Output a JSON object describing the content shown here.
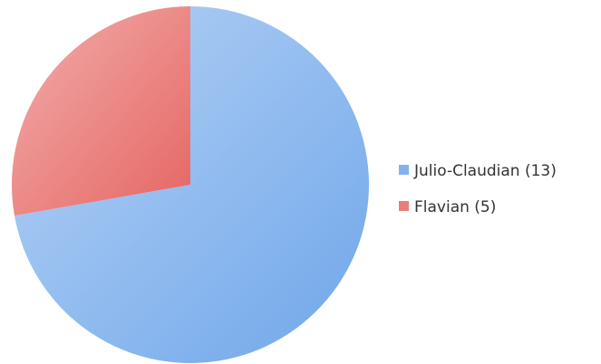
{
  "chart_data": {
    "type": "pie",
    "title": "",
    "start_angle_deg": 0,
    "direction": "clockwise",
    "slices": [
      {
        "label": "Julio-Claudian (13)",
        "value": 13,
        "color": "#82b3ee",
        "gradient": [
          "#b7d3f5",
          "#6fa6ea"
        ]
      },
      {
        "label": "Flavian (5)",
        "value": 5,
        "color": "#ea7d7a",
        "gradient": [
          "#f2aeac",
          "#e56663"
        ]
      }
    ],
    "legend_position": "right"
  }
}
